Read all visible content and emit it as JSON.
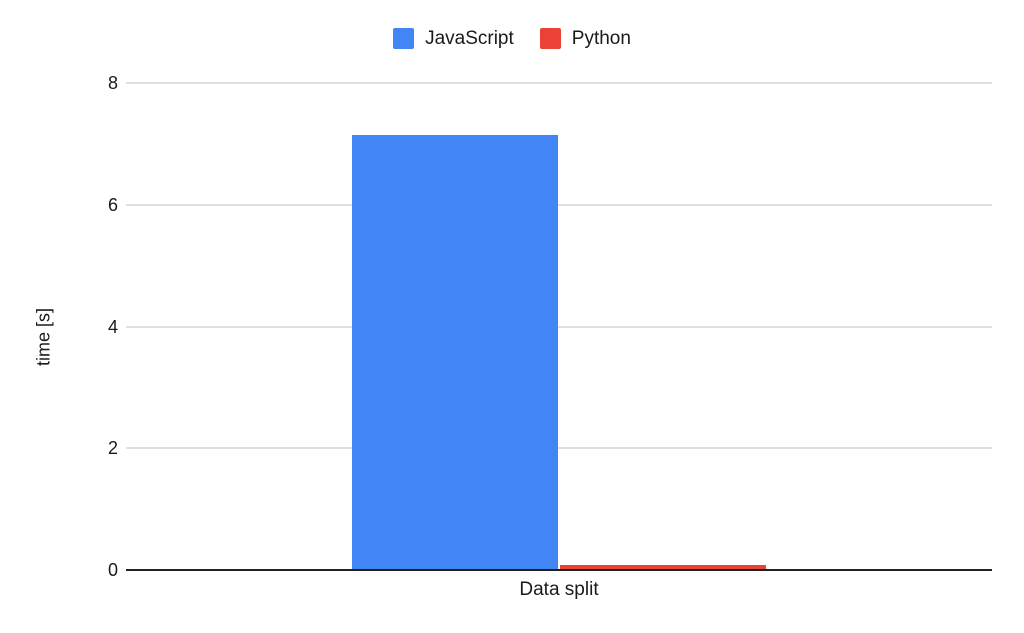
{
  "chart_data": {
    "type": "bar",
    "title": "",
    "categories": [
      "Data split"
    ],
    "series": [
      {
        "name": "JavaScript",
        "color": "#4285F4",
        "values": [
          7.13
        ]
      },
      {
        "name": "Python",
        "color": "#EA4335",
        "values": [
          0.07
        ]
      }
    ],
    "xlabel": "",
    "ylabel": "time [s]",
    "ylim": [
      0,
      8
    ],
    "yticks": [
      0,
      2,
      4,
      6,
      8
    ],
    "grid": true,
    "legend_position": "top-center",
    "background_color": "#ffffff",
    "gridline_color": "#e0e0e0",
    "axis_color": "#212121",
    "text_color": "#1a1a1a"
  }
}
